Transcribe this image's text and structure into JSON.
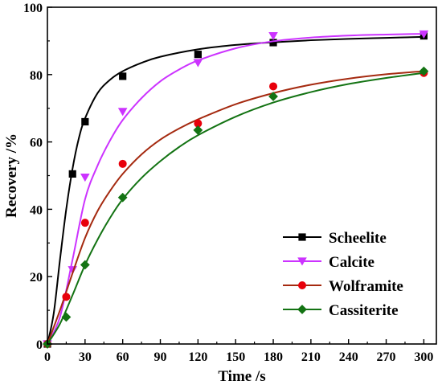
{
  "chart_data": {
    "type": "scatter",
    "xlabel": "Time /s",
    "ylabel": "Recovery /%",
    "xlim": [
      0,
      310
    ],
    "ylim": [
      0,
      100
    ],
    "xticks": [
      0,
      30,
      60,
      90,
      120,
      150,
      180,
      210,
      240,
      270,
      300
    ],
    "yticks": [
      0,
      20,
      40,
      60,
      80,
      100
    ],
    "grid": false,
    "legend_position": "bottom-right",
    "series": [
      {
        "name": "Scheelite",
        "color": "#000000",
        "marker": "square",
        "points": [
          [
            0,
            0
          ],
          [
            20,
            50.5
          ],
          [
            30,
            66
          ],
          [
            60,
            79.5
          ],
          [
            120,
            86
          ],
          [
            180,
            89.5
          ],
          [
            300,
            91.5
          ]
        ],
        "fit": [
          [
            0,
            0
          ],
          [
            5,
            9
          ],
          [
            10,
            25
          ],
          [
            15,
            40
          ],
          [
            20,
            52
          ],
          [
            25,
            61
          ],
          [
            30,
            67
          ],
          [
            40,
            74.5
          ],
          [
            50,
            78.5
          ],
          [
            60,
            81
          ],
          [
            75,
            83.5
          ],
          [
            90,
            85.3
          ],
          [
            120,
            87.5
          ],
          [
            150,
            88.8
          ],
          [
            180,
            89.6
          ],
          [
            210,
            90.2
          ],
          [
            240,
            90.6
          ],
          [
            270,
            90.9
          ],
          [
            300,
            91.2
          ]
        ]
      },
      {
        "name": "Calcite",
        "color": "#cc33ff",
        "marker": "triangle-down",
        "points": [
          [
            0,
            0
          ],
          [
            20,
            22
          ],
          [
            30,
            49.5
          ],
          [
            60,
            69
          ],
          [
            120,
            83.5
          ],
          [
            180,
            91.5
          ],
          [
            300,
            92
          ]
        ],
        "fit": [
          [
            0,
            0
          ],
          [
            10,
            8
          ],
          [
            20,
            25
          ],
          [
            30,
            43
          ],
          [
            40,
            53
          ],
          [
            50,
            60.5
          ],
          [
            60,
            66.5
          ],
          [
            75,
            73
          ],
          [
            90,
            78
          ],
          [
            105,
            81.5
          ],
          [
            120,
            84.2
          ],
          [
            150,
            87.8
          ],
          [
            180,
            89.9
          ],
          [
            210,
            91
          ],
          [
            240,
            91.6
          ],
          [
            270,
            91.9
          ],
          [
            300,
            92.1
          ]
        ]
      },
      {
        "name": "Wolframite",
        "color": "#e8000b",
        "line_color": "#a52a10",
        "marker": "circle",
        "points": [
          [
            0,
            0
          ],
          [
            15,
            14
          ],
          [
            30,
            36
          ],
          [
            60,
            53.5
          ],
          [
            120,
            65.5
          ],
          [
            180,
            76.5
          ],
          [
            300,
            80.5
          ]
        ],
        "fit": [
          [
            0,
            0
          ],
          [
            10,
            10
          ],
          [
            20,
            21
          ],
          [
            30,
            31.5
          ],
          [
            40,
            39.5
          ],
          [
            50,
            45.5
          ],
          [
            60,
            50.5
          ],
          [
            75,
            56.3
          ],
          [
            90,
            60.7
          ],
          [
            105,
            64
          ],
          [
            120,
            66.7
          ],
          [
            150,
            71.2
          ],
          [
            180,
            74.5
          ],
          [
            210,
            77
          ],
          [
            240,
            78.8
          ],
          [
            270,
            80.1
          ],
          [
            300,
            81
          ]
        ]
      },
      {
        "name": "Cassiterite",
        "color": "#137313",
        "marker": "diamond",
        "points": [
          [
            0,
            0
          ],
          [
            15,
            8
          ],
          [
            30,
            23.5
          ],
          [
            60,
            43.5
          ],
          [
            120,
            63.5
          ],
          [
            180,
            73.5
          ],
          [
            300,
            81
          ]
        ],
        "fit": [
          [
            0,
            0
          ],
          [
            10,
            6
          ],
          [
            20,
            14.5
          ],
          [
            30,
            23.5
          ],
          [
            40,
            31
          ],
          [
            50,
            37.5
          ],
          [
            60,
            43
          ],
          [
            75,
            49.3
          ],
          [
            90,
            54.3
          ],
          [
            105,
            58.5
          ],
          [
            120,
            62
          ],
          [
            150,
            67.5
          ],
          [
            180,
            71.7
          ],
          [
            210,
            74.8
          ],
          [
            240,
            77.2
          ],
          [
            270,
            79
          ],
          [
            300,
            80.5
          ]
        ]
      }
    ]
  }
}
